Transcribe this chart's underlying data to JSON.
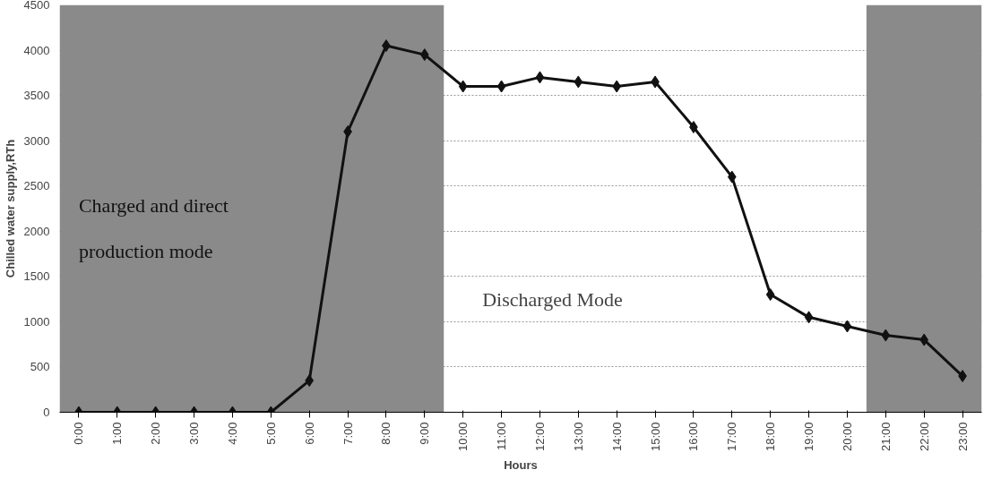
{
  "chart_data": {
    "type": "line",
    "xlabel": "Hours",
    "ylabel": "Chilled water supply,RTh",
    "categories": [
      "0:00",
      "1:00",
      "2:00",
      "3:00",
      "4:00",
      "5:00",
      "6:00",
      "7:00",
      "8:00",
      "9:00",
      "10:00",
      "11:00",
      "12:00",
      "13:00",
      "14:00",
      "15:00",
      "16:00",
      "17:00",
      "18:00",
      "19:00",
      "20:00",
      "21:00",
      "22:00",
      "23:00"
    ],
    "series": [
      {
        "color": "#111111",
        "values": [
          0,
          0,
          0,
          0,
          0,
          0,
          350,
          3100,
          4050,
          3950,
          3600,
          3600,
          3700,
          3650,
          3600,
          3650,
          3150,
          2600,
          1300,
          1050,
          950,
          850,
          800,
          400
        ]
      }
    ],
    "ylim": [
      0,
      4500
    ],
    "yticks": [
      0,
      500,
      1000,
      1500,
      2000,
      2500,
      3000,
      3500,
      4000,
      4500
    ],
    "grid": "y",
    "marker": "diamond",
    "line_style": "solid",
    "bands": [
      {
        "axis": "x",
        "from": "0:00",
        "to": "9:00",
        "label": "Charged and direct production mode",
        "color": "#8a8a8a"
      },
      {
        "axis": "x",
        "from": "21:00",
        "to": "23:00",
        "color": "#8a8a8a"
      }
    ],
    "annotations": [
      "Discharged Mode"
    ]
  }
}
